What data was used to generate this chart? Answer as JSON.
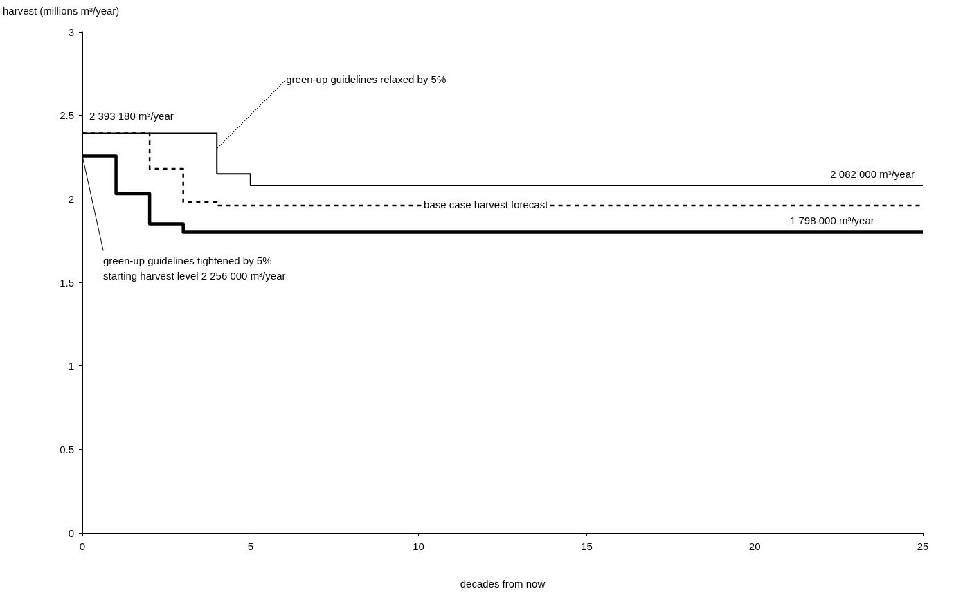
{
  "chart_data": {
    "type": "step",
    "xlabel": "decades from now",
    "ylabel": "harvest (millions m³/year)",
    "xlim": [
      0,
      25
    ],
    "xticks": [
      0,
      5,
      10,
      15,
      20,
      25
    ],
    "ylim": [
      0,
      3
    ],
    "yticks": [
      0,
      0.5,
      1,
      1.5,
      2,
      2.5,
      3
    ],
    "grid": false,
    "marker": "none",
    "series": [
      {
        "color": "#000000",
        "line_style": "solid",
        "x": [
          0,
          4,
          5,
          25
        ],
        "values": [
          2.393,
          2.15,
          2.08,
          2.08
        ]
      },
      {
        "color": "#000000",
        "line_style": "dashed",
        "x": [
          0,
          2,
          3,
          4,
          25
        ],
        "values": [
          2.393,
          2.18,
          1.98,
          1.96,
          1.96
        ]
      },
      {
        "color": "#000000",
        "line_style": "solid",
        "x": [
          0,
          1,
          2,
          3,
          25
        ],
        "values": [
          2.256,
          2.03,
          1.85,
          1.8,
          1.8
        ]
      }
    ],
    "annotations": [
      {
        "text": "2 393 180 m³/year",
        "x": 0,
        "y": 2.393
      },
      {
        "text": "green-up guidelines relaxed by 5%",
        "x": 4,
        "y": 2.3
      },
      {
        "text": "2 082 000 m³/year",
        "x": 23.5,
        "y": 2.08
      },
      {
        "text": "base case harvest forecast",
        "x": 12,
        "y": 1.96
      },
      {
        "text": "1 798 000 m³/year",
        "x": 22.3,
        "y": 1.8
      },
      {
        "text": "green-up guidelines tightened by 5%\nstarting harvest level 2 256 000 m³/year",
        "x": 0,
        "y": 2.256
      }
    ]
  }
}
